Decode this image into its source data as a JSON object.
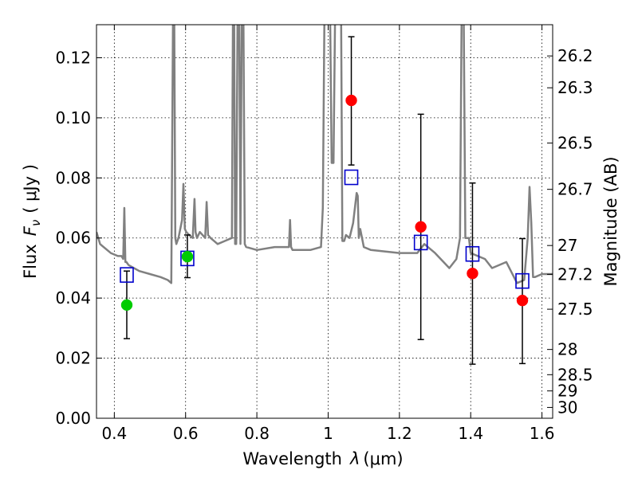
{
  "chart_data": {
    "type": "scatter",
    "xlabel_text": "Wavelength",
    "xlabel_symbol": "λ",
    "xlabel_unit": "(μm)",
    "ylabel_text": "Flux",
    "ylabel_symbol": "F",
    "ylabel_subscript": "ν",
    "ylabel_unit": "( μJy )",
    "y2label": "Magnitude (AB)",
    "xlim": [
      0.35,
      1.63
    ],
    "ylim": [
      0.0,
      0.131
    ],
    "grid": true,
    "x_ticks": [
      {
        "value": 0.4,
        "label": "0.4"
      },
      {
        "value": 0.6,
        "label": "0.6"
      },
      {
        "value": 0.8,
        "label": "0.8"
      },
      {
        "value": 1.0,
        "label": "1"
      },
      {
        "value": 1.2,
        "label": "1.2"
      },
      {
        "value": 1.4,
        "label": "1.4"
      },
      {
        "value": 1.6,
        "label": "1.6"
      }
    ],
    "y_ticks": [
      {
        "value": 0.0,
        "label": "0.00"
      },
      {
        "value": 0.02,
        "label": "0.02"
      },
      {
        "value": 0.04,
        "label": "0.04"
      },
      {
        "value": 0.06,
        "label": "0.06"
      },
      {
        "value": 0.08,
        "label": "0.08"
      },
      {
        "value": 0.1,
        "label": "0.10"
      },
      {
        "value": 0.12,
        "label": "0.12"
      }
    ],
    "magnitude_ticks": [
      {
        "value": 0.1206,
        "label": "26.2"
      },
      {
        "value": 0.11,
        "label": "26.3"
      },
      {
        "value": 0.0916,
        "label": "26.5"
      },
      {
        "value": 0.0762,
        "label": "26.7"
      },
      {
        "value": 0.0575,
        "label": "27"
      },
      {
        "value": 0.0479,
        "label": "27.2"
      },
      {
        "value": 0.0363,
        "label": "27.5"
      },
      {
        "value": 0.0229,
        "label": "28"
      },
      {
        "value": 0.0145,
        "label": "28.5"
      },
      {
        "value": 0.0091,
        "label": "29"
      },
      {
        "value": 0.0036,
        "label": "30"
      }
    ],
    "colors": {
      "spectrum": "#808080",
      "observed_red": "#ff0000",
      "observed_green": "#00cc00",
      "model_box": "#0000cc",
      "errorbar": "#000000",
      "grid": "#000000"
    },
    "errorbars": [
      {
        "x": 0.435,
        "low": 0.0265,
        "high": 0.049
      },
      {
        "x": 0.605,
        "low": 0.0468,
        "high": 0.061
      },
      {
        "x": 1.065,
        "low": 0.0843,
        "high": 0.127
      },
      {
        "x": 1.26,
        "low": 0.0262,
        "high": 0.1012
      },
      {
        "x": 1.405,
        "low": 0.018,
        "high": 0.0783
      },
      {
        "x": 1.545,
        "low": 0.0182,
        "high": 0.0598
      }
    ],
    "observed": [
      {
        "x": 0.435,
        "y": 0.0377,
        "color": "green"
      },
      {
        "x": 0.605,
        "y": 0.0538,
        "color": "green"
      },
      {
        "x": 1.065,
        "y": 0.1058,
        "color": "red"
      },
      {
        "x": 1.26,
        "y": 0.0637,
        "color": "red"
      },
      {
        "x": 1.405,
        "y": 0.0482,
        "color": "red"
      },
      {
        "x": 1.545,
        "y": 0.0392,
        "color": "red"
      }
    ],
    "model": [
      {
        "x": 0.435,
        "y": 0.0477
      },
      {
        "x": 0.605,
        "y": 0.0532
      },
      {
        "x": 1.065,
        "y": 0.0802
      },
      {
        "x": 1.26,
        "y": 0.0585
      },
      {
        "x": 1.405,
        "y": 0.0547
      },
      {
        "x": 1.545,
        "y": 0.0457
      }
    ],
    "spectrum": {
      "x": [
        0.35,
        0.36,
        0.37,
        0.39,
        0.41,
        0.42,
        0.425,
        0.428,
        0.431,
        0.434,
        0.44,
        0.47,
        0.5,
        0.53,
        0.55,
        0.56,
        0.565,
        0.568,
        0.571,
        0.574,
        0.58,
        0.59,
        0.594,
        0.598,
        0.602,
        0.61,
        0.62,
        0.625,
        0.628,
        0.632,
        0.64,
        0.655,
        0.659,
        0.663,
        0.67,
        0.69,
        0.71,
        0.73,
        0.733,
        0.736,
        0.739,
        0.742,
        0.746,
        0.75,
        0.754,
        0.758,
        0.762,
        0.766,
        0.77,
        0.8,
        0.85,
        0.89,
        0.893,
        0.896,
        0.9,
        0.95,
        0.98,
        0.985,
        0.99,
        0.995,
        1.0,
        1.005,
        1.01,
        1.015,
        1.02,
        1.03,
        1.036,
        1.04,
        1.045,
        1.05,
        1.06,
        1.07,
        1.08,
        1.083,
        1.086,
        1.09,
        1.1,
        1.12,
        1.2,
        1.25,
        1.27,
        1.3,
        1.34,
        1.36,
        1.37,
        1.375,
        1.38,
        1.385,
        1.39,
        1.395,
        1.4,
        1.44,
        1.46,
        1.5,
        1.53,
        1.55,
        1.56,
        1.565,
        1.57,
        1.575,
        1.58,
        1.6,
        1.63
      ],
      "y": [
        0.062,
        0.058,
        0.057,
        0.055,
        0.054,
        0.054,
        0.053,
        0.07,
        0.052,
        0.052,
        0.051,
        0.049,
        0.048,
        0.047,
        0.046,
        0.045,
        0.14,
        0.14,
        0.06,
        0.058,
        0.06,
        0.066,
        0.078,
        0.063,
        0.062,
        0.061,
        0.06,
        0.073,
        0.062,
        0.06,
        0.062,
        0.06,
        0.072,
        0.061,
        0.06,
        0.058,
        0.059,
        0.06,
        0.14,
        0.14,
        0.058,
        0.058,
        0.14,
        0.14,
        0.058,
        0.14,
        0.14,
        0.058,
        0.057,
        0.056,
        0.057,
        0.057,
        0.066,
        0.057,
        0.056,
        0.056,
        0.057,
        0.07,
        0.14,
        0.14,
        0.14,
        0.14,
        0.085,
        0.085,
        0.14,
        0.14,
        0.14,
        0.059,
        0.059,
        0.061,
        0.06,
        0.065,
        0.075,
        0.074,
        0.06,
        0.063,
        0.057,
        0.056,
        0.055,
        0.055,
        0.058,
        0.055,
        0.05,
        0.053,
        0.06,
        0.14,
        0.14,
        0.06,
        0.06,
        0.06,
        0.055,
        0.053,
        0.05,
        0.052,
        0.045,
        0.046,
        0.06,
        0.077,
        0.065,
        0.047,
        0.047,
        0.048,
        0.048
      ]
    }
  }
}
